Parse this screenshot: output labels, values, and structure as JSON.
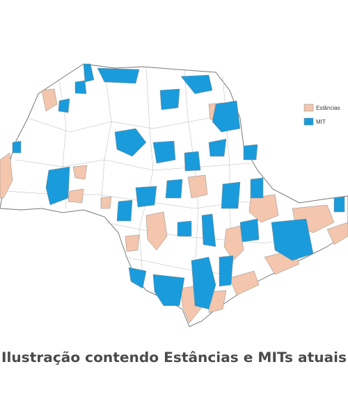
{
  "legend": [
    "Estâncias",
    "MIT"
  ],
  "caption": "Ilustração contendo Estâncias e MITs atuais"
}
